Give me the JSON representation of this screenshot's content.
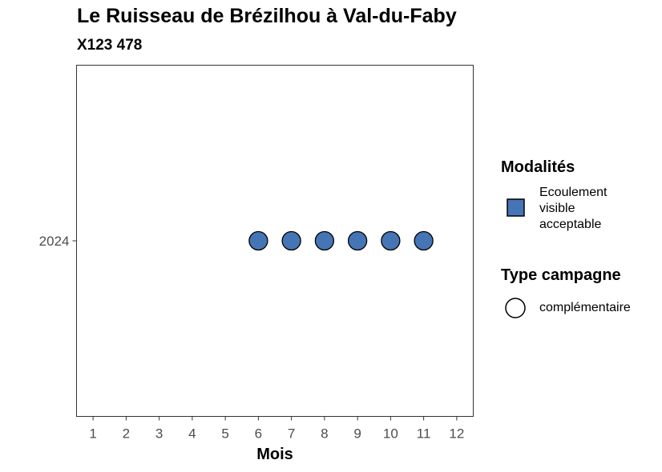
{
  "chart_data": {
    "type": "scatter",
    "title": "Le Ruisseau de Brézilhou à Val-du-Faby",
    "subtitle": "X123 478",
    "xlabel": "Mois",
    "ylabel": "",
    "x_ticks": [
      1,
      2,
      3,
      4,
      5,
      6,
      7,
      8,
      9,
      10,
      11,
      12
    ],
    "y_categories": [
      "2024"
    ],
    "xlim": [
      0.5,
      12.5
    ],
    "grid": false,
    "series": [
      {
        "name": "Ecoulement visible acceptable",
        "campaign": "complémentaire",
        "color": "#4575b4",
        "points": [
          {
            "x": 6,
            "y": "2024"
          },
          {
            "x": 7,
            "y": "2024"
          },
          {
            "x": 8,
            "y": "2024"
          },
          {
            "x": 9,
            "y": "2024"
          },
          {
            "x": 10,
            "y": "2024"
          },
          {
            "x": 11,
            "y": "2024"
          }
        ]
      }
    ],
    "legend": {
      "placement": "right",
      "modalites_title": "Modalités",
      "modalites_items": [
        {
          "label": "Ecoulement visible acceptable",
          "color": "#4575b4"
        }
      ],
      "campagne_title": "Type campagne",
      "campagne_items": [
        {
          "label": "complémentaire"
        }
      ]
    }
  }
}
